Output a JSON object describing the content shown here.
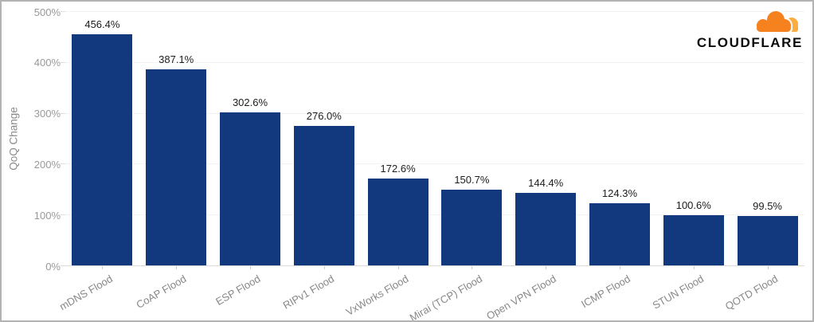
{
  "chart_data": {
    "type": "bar",
    "title": "",
    "categories": [
      "mDNS Flood",
      "CoAP Flood",
      "ESP Flood",
      "RIPv1 Flood",
      "VxWorks Flood",
      "Mirai (TCP) Flood",
      "Open VPN Flood",
      "ICMP Flood",
      "STUN Flood",
      "QOTD Flood"
    ],
    "values": [
      456.4,
      387.1,
      302.6,
      276.0,
      172.6,
      150.7,
      144.4,
      124.3,
      100.6,
      99.5
    ],
    "value_labels": [
      "456.4%",
      "387.1%",
      "302.6%",
      "276.0%",
      "172.6%",
      "150.7%",
      "144.4%",
      "124.3%",
      "100.6%",
      "99.5%"
    ],
    "xlabel": "",
    "ylabel": "QoQ Change",
    "ylim": [
      0,
      500
    ],
    "ytick_interval": 100,
    "ytick_labels": [
      "0%",
      "100%",
      "200%",
      "300%",
      "400%",
      "500%"
    ],
    "grid": true,
    "legend_position": "none",
    "bar_color": "#12387D"
  },
  "branding": {
    "logo_text": "CLOUDFLARE",
    "cloud_main_color": "#F6821F",
    "cloud_light_color": "#FBAD41"
  }
}
